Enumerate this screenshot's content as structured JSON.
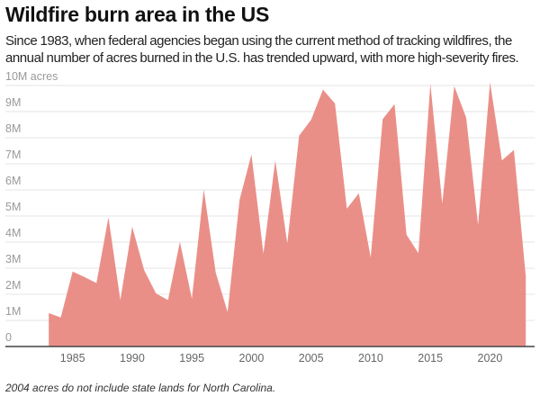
{
  "chart_data": {
    "type": "area",
    "title": "Wildfire burn area in the US",
    "subtitle": "Since 1983, when federal agencies began using the current method of tracking wildfires, the annual number of acres burned in the U.S. has trended upward, with more high-severity fires.",
    "note": "2004 acres do not include state lands for North Carolina.",
    "color": "#e8867e",
    "ylim": [
      0,
      10
    ],
    "yunit": "M acres",
    "yticks": [
      {
        "value": 0,
        "label": "0"
      },
      {
        "value": 1,
        "label": "1M"
      },
      {
        "value": 2,
        "label": "2M"
      },
      {
        "value": 3,
        "label": "3M"
      },
      {
        "value": 4,
        "label": "4M"
      },
      {
        "value": 5,
        "label": "5M"
      },
      {
        "value": 6,
        "label": "6M"
      },
      {
        "value": 7,
        "label": "7M"
      },
      {
        "value": 8,
        "label": "8M"
      },
      {
        "value": 9,
        "label": "9M"
      },
      {
        "value": 10,
        "label": "10M acres"
      }
    ],
    "xticks": [
      {
        "value": 1985,
        "label": "1985"
      },
      {
        "value": 1990,
        "label": "1990"
      },
      {
        "value": 1995,
        "label": "1995"
      },
      {
        "value": 2000,
        "label": "2000"
      },
      {
        "value": 2005,
        "label": "2005"
      },
      {
        "value": 2010,
        "label": "2010"
      },
      {
        "value": 2015,
        "label": "2015"
      },
      {
        "value": 2020,
        "label": "2020"
      }
    ],
    "grid": true,
    "x": [
      1983,
      1984,
      1985,
      1986,
      1987,
      1988,
      1989,
      1990,
      1991,
      1992,
      1993,
      1994,
      1995,
      1996,
      1997,
      1998,
      1999,
      2000,
      2001,
      2002,
      2003,
      2004,
      2005,
      2006,
      2007,
      2008,
      2009,
      2010,
      2011,
      2012,
      2013,
      2014,
      2015,
      2016,
      2017,
      2018,
      2019,
      2020,
      2021,
      2022,
      2023
    ],
    "values": [
      1.28,
      1.11,
      2.87,
      2.66,
      2.43,
      4.95,
      1.78,
      4.59,
      2.92,
      2.03,
      1.78,
      4.01,
      1.83,
      6.02,
      2.83,
      1.32,
      5.62,
      7.36,
      3.56,
      7.13,
      3.96,
      8.08,
      8.69,
      9.84,
      9.31,
      5.28,
      5.87,
      3.41,
      8.71,
      9.29,
      4.28,
      3.58,
      10.07,
      5.48,
      9.98,
      8.77,
      4.66,
      10.12,
      7.13,
      7.53,
      2.69
    ]
  }
}
